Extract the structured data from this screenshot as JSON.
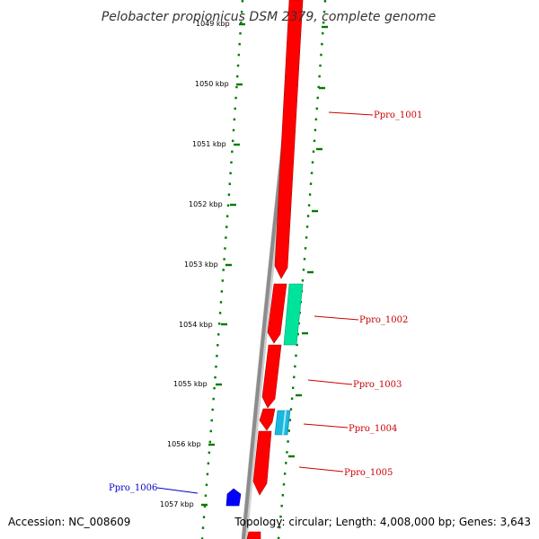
{
  "title": "Pelobacter propionicus DSM 2379, complete genome",
  "colors": {
    "backbone": "#8c8c8c",
    "cds_forward": "#ff0000",
    "cds_reverse": "#0000ff",
    "rna_green": "#00e39a",
    "rna_cyan": "#1ab8e0",
    "tick_marks": "#007a00",
    "forward_label": "#cc0000",
    "reverse_label": "#0000cc"
  },
  "ticks": [
    {
      "label": "1049 kbp"
    },
    {
      "label": "1050 kbp"
    },
    {
      "label": "1051 kbp"
    },
    {
      "label": "1052 kbp"
    },
    {
      "label": "1053 kbp"
    },
    {
      "label": "1054 kbp"
    },
    {
      "label": "1055 kbp"
    },
    {
      "label": "1056 kbp"
    },
    {
      "label": "1057 kbp"
    }
  ],
  "genes": [
    {
      "label": "Ppro_1001",
      "strand": "forward"
    },
    {
      "label": "Ppro_1002",
      "strand": "forward"
    },
    {
      "label": "Ppro_1003",
      "strand": "forward"
    },
    {
      "label": "Ppro_1004",
      "strand": "forward"
    },
    {
      "label": "Ppro_1005",
      "strand": "forward"
    },
    {
      "label": "Ppro_1006",
      "strand": "reverse"
    }
  ],
  "footer": {
    "accession": "Accession: NC_008609",
    "summary": "Topology: circular; Length: 4,008,000 bp; Genes: 3,643"
  }
}
